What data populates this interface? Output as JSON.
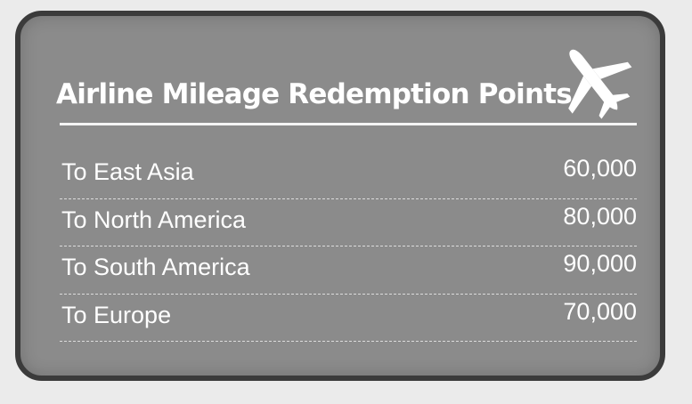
{
  "card": {
    "title": "Airline Mileage Redemption Points",
    "icon": "airplane-icon",
    "rows": [
      {
        "destination": "To East Asia",
        "points": "60,000"
      },
      {
        "destination": "To North America",
        "points": "80,000"
      },
      {
        "destination": "To South America",
        "points": "90,000"
      },
      {
        "destination": "To Europe",
        "points": "70,000"
      }
    ]
  },
  "colors": {
    "card_background": "#8b8b8b",
    "card_border": "#3b3b3b",
    "text": "#ffffff"
  }
}
